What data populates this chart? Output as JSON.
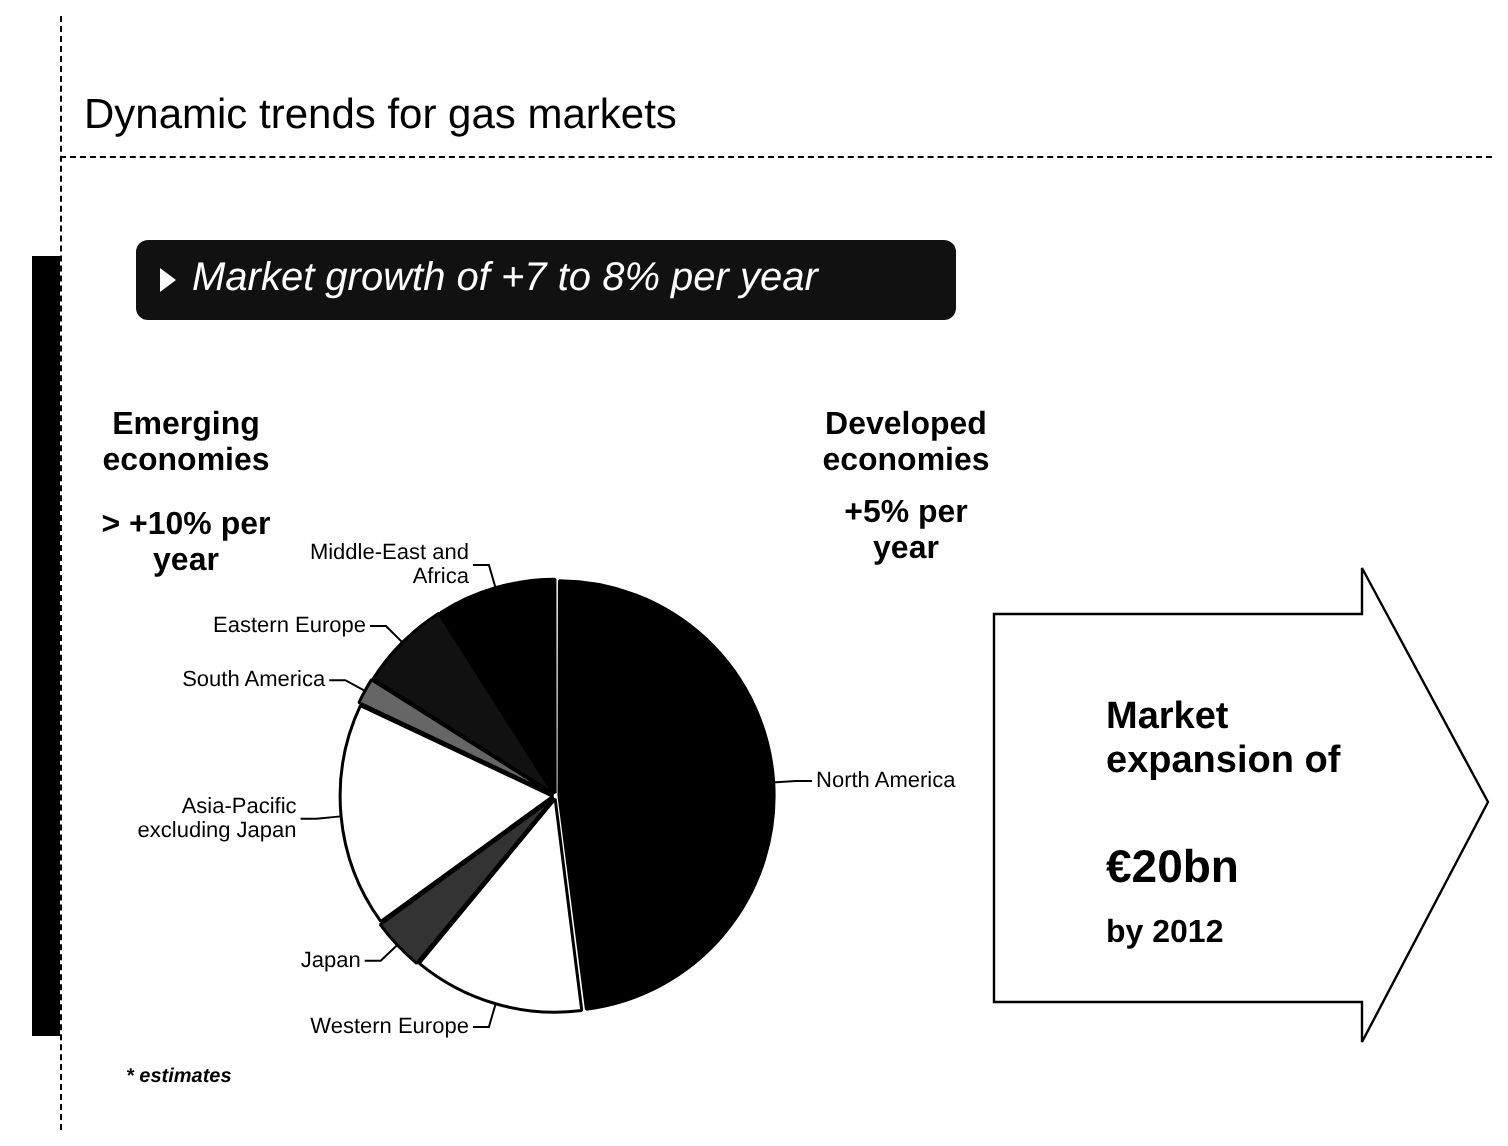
{
  "chart_data": {
    "type": "pie",
    "title": "Dynamic trends for gas markets",
    "subtitle": "Market growth of +7 to 8% per year",
    "categories": [
      "North America",
      "Western Europe",
      "Japan",
      "Asia-Pacific excluding Japan",
      "South America",
      "Eastern Europe",
      "Middle-East and Africa"
    ],
    "values": [
      48,
      13,
      4,
      17,
      2,
      7,
      9
    ],
    "colors": [
      "#000000",
      "#ffffff",
      "#333333",
      "#ffffff",
      "#666666",
      "#111111",
      "#000000"
    ],
    "annotations": [
      "Emerging economies",
      "> +10% per year",
      "Developed economies",
      "+5% per year",
      "Market expansion of",
      "€20bn",
      "by 2012",
      "* estimates"
    ],
    "legend": false
  }
}
